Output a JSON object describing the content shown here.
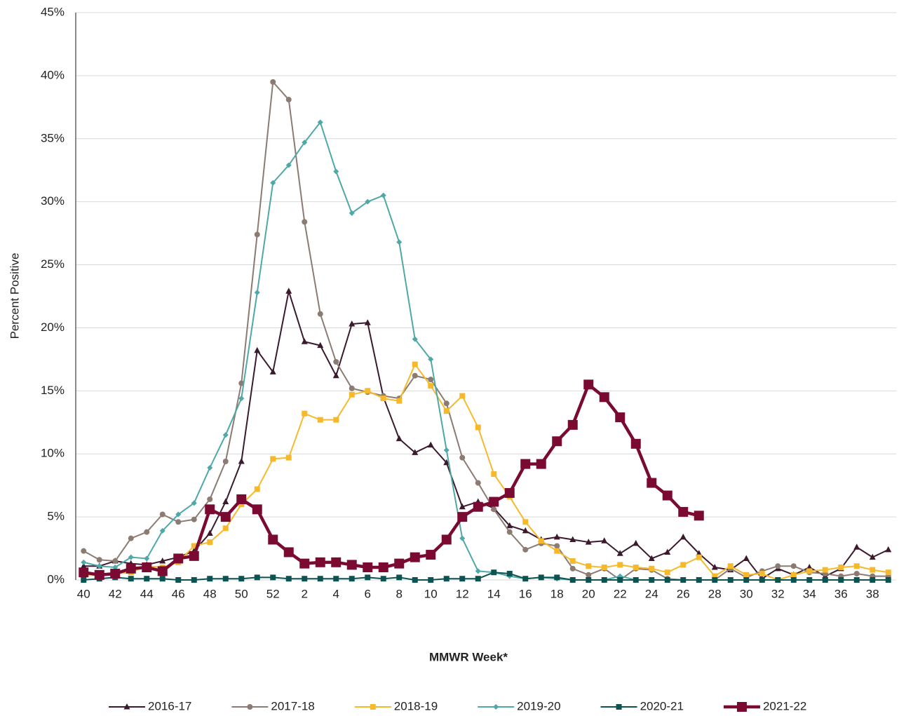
{
  "chart_data": {
    "type": "line",
    "y_axis_title": "Percent Positive",
    "x_axis_title": "MMWR Week*",
    "categories": [
      "40",
      null,
      "42",
      null,
      "44",
      null,
      "46",
      null,
      "48",
      null,
      "50",
      null,
      "52",
      null,
      "2",
      null,
      "4",
      null,
      "6",
      null,
      "8",
      null,
      "10",
      null,
      "12",
      null,
      "14",
      null,
      "16",
      null,
      "18",
      null,
      "20",
      null,
      "22",
      null,
      "24",
      null,
      "26",
      null,
      "28",
      null,
      "30",
      null,
      "32",
      null,
      "34",
      null,
      "36",
      null,
      "38",
      null
    ],
    "ylim": [
      0,
      45
    ],
    "yticks": [
      {
        "value": 0,
        "label": "0%"
      },
      {
        "value": 5,
        "label": "5%"
      },
      {
        "value": 10,
        "label": "10%"
      },
      {
        "value": 15,
        "label": "15%"
      },
      {
        "value": 20,
        "label": "20%"
      },
      {
        "value": 25,
        "label": "25%"
      },
      {
        "value": 30,
        "label": "30%"
      },
      {
        "value": 35,
        "label": "35%"
      },
      {
        "value": 40,
        "label": "40%"
      },
      {
        "value": 45,
        "label": "45%"
      }
    ],
    "grid": true,
    "legend": "bottom",
    "series": [
      {
        "name": "2016-17",
        "color": "#3b1a2e",
        "marker": "triangle",
        "line_width": 2,
        "values": [
          1.1,
          1.1,
          1.5,
          1.3,
          1.2,
          1.5,
          1.8,
          2.3,
          3.7,
          6.2,
          9.4,
          18.2,
          16.5,
          22.9,
          18.9,
          18.6,
          16.2,
          20.3,
          20.4,
          14.5,
          11.2,
          10.1,
          10.7,
          9.3,
          5.8,
          6.2,
          5.7,
          4.3,
          3.9,
          3.2,
          3.4,
          3.2,
          3.0,
          3.1,
          2.1,
          2.9,
          1.7,
          2.2,
          3.4,
          2.1,
          1.0,
          0.8,
          1.7,
          0.1,
          0.9,
          0.4,
          1.0,
          0.3,
          0.9,
          2.6,
          1.8,
          2.4
        ]
      },
      {
        "name": "2017-18",
        "color": "#8c7b73",
        "marker": "circle",
        "line_width": 2,
        "values": [
          2.3,
          1.6,
          1.5,
          3.3,
          3.8,
          5.2,
          4.6,
          4.8,
          6.4,
          9.4,
          15.6,
          27.4,
          39.5,
          38.1,
          28.4,
          21.1,
          17.3,
          15.2,
          14.9,
          14.6,
          14.4,
          16.2,
          15.9,
          14.0,
          9.7,
          7.7,
          5.6,
          3.8,
          2.4,
          2.9,
          2.7,
          0.9,
          0.4,
          0.9,
          0.0,
          0.9,
          0.8,
          0.1,
          0.0,
          0.0,
          0.0,
          0.9,
          0.2,
          0.7,
          1.1,
          1.1,
          0.6,
          0.5,
          0.3,
          0.5,
          0.3,
          0.3
        ]
      },
      {
        "name": "2018-19",
        "color": "#f7b92c",
        "marker": "square",
        "line_width": 2,
        "values": [
          0.4,
          0.4,
          0.5,
          0.6,
          1.1,
          1.0,
          1.4,
          2.7,
          3.0,
          4.1,
          6.0,
          7.2,
          9.6,
          9.7,
          13.2,
          12.7,
          12.7,
          14.7,
          15.0,
          14.4,
          14.2,
          17.1,
          15.4,
          13.4,
          14.6,
          12.1,
          8.4,
          6.6,
          4.6,
          3.1,
          2.3,
          1.5,
          1.1,
          1.0,
          1.2,
          1.0,
          0.9,
          0.6,
          1.2,
          1.8,
          0.3,
          1.1,
          0.4,
          0.5,
          0.0,
          0.4,
          0.7,
          0.8,
          1.0,
          1.1,
          0.8,
          0.6
        ]
      },
      {
        "name": "2019-20",
        "color": "#4fa8a8",
        "marker": "diamond",
        "line_width": 2,
        "values": [
          1.4,
          1.1,
          1.0,
          1.8,
          1.7,
          3.9,
          5.2,
          6.1,
          8.9,
          11.5,
          14.4,
          22.8,
          31.5,
          32.9,
          34.7,
          36.3,
          32.4,
          29.1,
          30.0,
          30.5,
          26.8,
          19.1,
          17.5,
          10.3,
          3.3,
          0.7,
          0.6,
          0.3,
          0.1,
          0.2,
          0.1,
          0.0,
          0.0,
          0.0,
          0.3,
          0.0,
          0.0,
          0.0,
          0.0,
          0.0,
          0.0,
          0.0,
          0.0,
          0.0,
          0.0,
          0.0,
          0.0,
          0.0,
          0.0,
          0.0,
          0.0,
          0.0
        ]
      },
      {
        "name": "2020-21",
        "color": "#0d5451",
        "marker": "square",
        "line_width": 2,
        "values": [
          0.0,
          0.1,
          0.2,
          0.1,
          0.1,
          0.1,
          0.0,
          0.0,
          0.1,
          0.1,
          0.1,
          0.2,
          0.2,
          0.1,
          0.1,
          0.1,
          0.1,
          0.1,
          0.2,
          0.1,
          0.2,
          0.0,
          0.0,
          0.1,
          0.1,
          0.1,
          0.6,
          0.5,
          0.1,
          0.2,
          0.2,
          0.0,
          0.0,
          0.0,
          0.0,
          0.0,
          0.0,
          0.0,
          0.0,
          0.0,
          0.0,
          0.0,
          0.0,
          0.0,
          0.0,
          0.0,
          0.0,
          0.0,
          0.0,
          0.0,
          0.0,
          0.0
        ]
      },
      {
        "name": "2021-22",
        "color": "#7b0a32",
        "marker": "square-large",
        "line_width": 4.5,
        "values": [
          0.6,
          0.4,
          0.5,
          0.9,
          1.0,
          0.7,
          1.7,
          1.9,
          5.6,
          5.0,
          6.4,
          5.6,
          3.2,
          2.2,
          1.3,
          1.4,
          1.4,
          1.2,
          1.0,
          1.0,
          1.3,
          1.8,
          2.0,
          3.2,
          5.0,
          5.8,
          6.2,
          6.9,
          9.2,
          9.2,
          11.0,
          12.3,
          15.5,
          14.5,
          12.9,
          10.8,
          7.7,
          6.7,
          5.4,
          5.1,
          null,
          null,
          null,
          null,
          null,
          null,
          null,
          null,
          null,
          null,
          null,
          null
        ]
      }
    ]
  }
}
